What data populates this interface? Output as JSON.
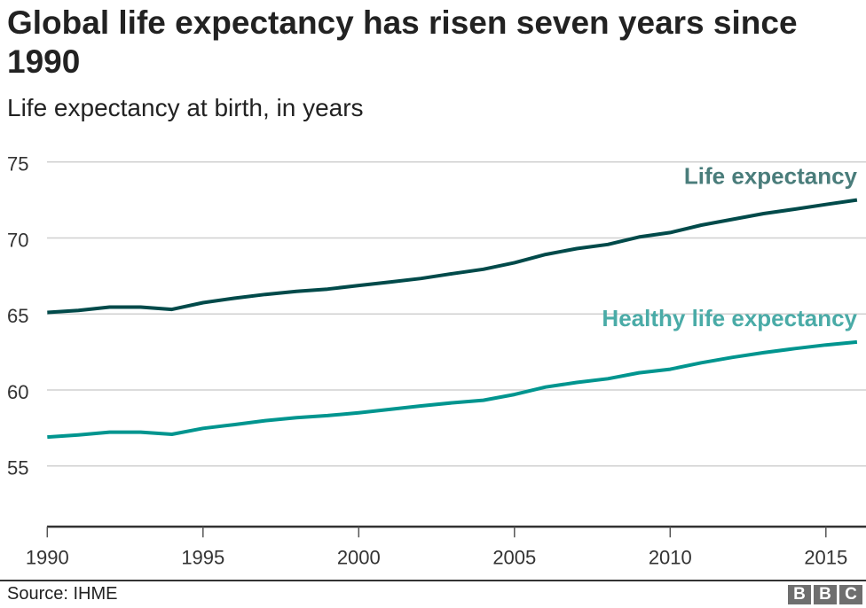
{
  "header": {
    "title": "Global life expectancy has risen seven years since 1990",
    "subtitle": "Life expectancy at birth, in years"
  },
  "footer": {
    "source": "Source: IHME",
    "logo": "BBC"
  },
  "chart_data": {
    "type": "line",
    "title": "Global life expectancy has risen seven years since 1990",
    "subtitle": "Life expectancy at birth, in years",
    "x": [
      1990,
      1991,
      1992,
      1993,
      1994,
      1995,
      1996,
      1997,
      1998,
      1999,
      2000,
      2001,
      2002,
      2003,
      2004,
      2005,
      2006,
      2007,
      2008,
      2009,
      2010,
      2011,
      2012,
      2013,
      2014,
      2015,
      2016
    ],
    "xlim": [
      1990,
      2016
    ],
    "ylim": [
      51,
      75
    ],
    "x_ticks": [
      "1990",
      "1995",
      "2000",
      "2005",
      "2010",
      "2015"
    ],
    "y_ticks": [
      "75",
      "70",
      "65",
      "60",
      "55"
    ],
    "grid": "horizontal",
    "legend": "direct labels at right end of lines",
    "series": [
      {
        "name": "Life expectancy",
        "color": "#004a4a",
        "label_color": "#4a7d7b",
        "values": [
          65.1,
          65.23,
          65.45,
          65.45,
          65.3,
          65.74,
          66.03,
          66.28,
          66.48,
          66.63,
          66.87,
          67.1,
          67.33,
          67.65,
          67.94,
          68.37,
          68.91,
          69.3,
          69.57,
          70.06,
          70.35,
          70.84,
          71.22,
          71.6,
          71.89,
          72.2,
          72.5
        ]
      },
      {
        "name": "Healthy life expectancy",
        "color": "#00958f",
        "label_color": "#4aaba7",
        "values": [
          56.9,
          57.04,
          57.22,
          57.22,
          57.08,
          57.47,
          57.72,
          57.98,
          58.17,
          58.31,
          58.5,
          58.72,
          58.95,
          59.15,
          59.32,
          59.7,
          60.19,
          60.49,
          60.74,
          61.13,
          61.36,
          61.79,
          62.14,
          62.45,
          62.72,
          62.96,
          63.15
        ]
      }
    ]
  }
}
